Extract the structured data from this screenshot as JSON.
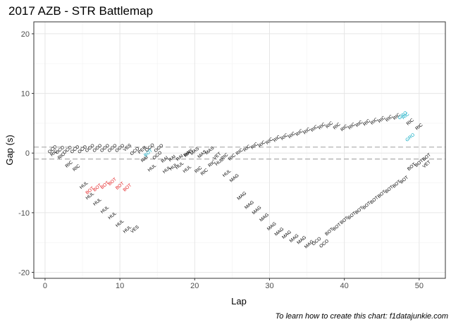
{
  "chart_data": {
    "type": "scatter",
    "title": "2017 AZB - STR Battlemap",
    "xlabel": "Lap",
    "ylabel": "Gap (s)",
    "xlim": [
      -1.5,
      53.5
    ],
    "ylim": [
      -21,
      22
    ],
    "xticks": [
      0,
      10,
      20,
      30,
      40,
      50
    ],
    "yticks": [
      -20,
      -10,
      0,
      10,
      20
    ],
    "reference_lines": [
      1,
      -1
    ],
    "caption": "To learn how to create this chart: f1datajunkie.com",
    "colors": {
      "default": "#000000",
      "ahead_red": "#e41a1c",
      "behind_teal": "#00a7c1",
      "grid_major": "#e6e6e6",
      "grid_minor": "#f2f2f2",
      "border": "#333333",
      "dashed": "#b3b3b3"
    },
    "points": [
      {
        "x": 1,
        "y": 0.6,
        "label": "OCO",
        "color": "default"
      },
      {
        "x": 1.2,
        "y": 0,
        "label": "RIC",
        "color": "default"
      },
      {
        "x": 2,
        "y": 0.5,
        "label": "OCO",
        "color": "default"
      },
      {
        "x": 2.2,
        "y": -0.5,
        "label": "RIC",
        "color": "default"
      },
      {
        "x": 3,
        "y": 0.5,
        "label": "OCO",
        "color": "default"
      },
      {
        "x": 3.2,
        "y": -1.9,
        "label": "RIC",
        "color": "default"
      },
      {
        "x": 4,
        "y": 0.6,
        "label": "OCO",
        "color": "default"
      },
      {
        "x": 4.2,
        "y": -2.5,
        "label": "RIC",
        "color": "default"
      },
      {
        "x": 5,
        "y": 0.6,
        "label": "OCO",
        "color": "default"
      },
      {
        "x": 6,
        "y": 0.8,
        "label": "OCO",
        "color": "default"
      },
      {
        "x": 5.2,
        "y": -5.4,
        "label": "HUL",
        "color": "default"
      },
      {
        "x": 6,
        "y": -6.3,
        "label": "BOT",
        "color": "ahead_red"
      },
      {
        "x": 7,
        "y": 0.8,
        "label": "OCO",
        "color": "default"
      },
      {
        "x": 6,
        "y": -7.2,
        "label": "HUL",
        "color": "default"
      },
      {
        "x": 7,
        "y": -5.8,
        "label": "BOT",
        "color": "ahead_red"
      },
      {
        "x": 8,
        "y": 0.8,
        "label": "OCO",
        "color": "default"
      },
      {
        "x": 7,
        "y": -8.2,
        "label": "HUL",
        "color": "default"
      },
      {
        "x": 8,
        "y": -5.4,
        "label": "BOT",
        "color": "ahead_red"
      },
      {
        "x": 9,
        "y": 0.8,
        "label": "OCO",
        "color": "default"
      },
      {
        "x": 8,
        "y": -9.5,
        "label": "HUL",
        "color": "default"
      },
      {
        "x": 9,
        "y": -4.8,
        "label": "BOT",
        "color": "ahead_red"
      },
      {
        "x": 10,
        "y": 0.8,
        "label": "OCO",
        "color": "default"
      },
      {
        "x": 9,
        "y": -10.5,
        "label": "HUL",
        "color": "default"
      },
      {
        "x": 10,
        "y": -5.5,
        "label": "BOT",
        "color": "ahead_red"
      },
      {
        "x": 11,
        "y": 0.9,
        "label": "VES",
        "color": "default"
      },
      {
        "x": 10,
        "y": -11.8,
        "label": "HUL",
        "color": "default"
      },
      {
        "x": 11,
        "y": -5.8,
        "label": "BOT",
        "color": "ahead_red"
      },
      {
        "x": 12,
        "y": 0.3,
        "label": "OCO",
        "color": "default"
      },
      {
        "x": 11,
        "y": -12.8,
        "label": "HUL",
        "color": "default"
      },
      {
        "x": 12,
        "y": -12.8,
        "label": "VES",
        "color": "default"
      },
      {
        "x": 13,
        "y": 0.5,
        "label": "PER",
        "color": "default"
      },
      {
        "x": 13.3,
        "y": -1,
        "label": "RAI",
        "color": "default"
      },
      {
        "x": 13.8,
        "y": 0,
        "label": "BOT",
        "color": "behind_teal"
      },
      {
        "x": 14,
        "y": 0.9,
        "label": "OCO",
        "color": "default"
      },
      {
        "x": 15,
        "y": -0.4,
        "label": "OCO",
        "color": "default"
      },
      {
        "x": 14.3,
        "y": -2.5,
        "label": "HUL",
        "color": "default"
      },
      {
        "x": 15.2,
        "y": 0.8,
        "label": "OCO",
        "color": "default"
      },
      {
        "x": 16,
        "y": -1.1,
        "label": "RAI",
        "color": "default"
      },
      {
        "x": 16.3,
        "y": -2.8,
        "label": "HUL",
        "color": "default"
      },
      {
        "x": 17,
        "y": -0.9,
        "label": "RAI",
        "color": "default"
      },
      {
        "x": 17.2,
        "y": -2.3,
        "label": "HUL",
        "color": "default"
      },
      {
        "x": 18,
        "y": -0.8,
        "label": "RAI",
        "color": "default"
      },
      {
        "x": 18,
        "y": -2.1,
        "label": "HUL",
        "color": "default"
      },
      {
        "x": 19,
        "y": -0.1,
        "label": "RAI",
        "color": "default"
      },
      {
        "x": 19.2,
        "y": 0,
        "label": "MAS",
        "color": "default"
      },
      {
        "x": 19,
        "y": -2.7,
        "label": "HUL",
        "color": "default"
      },
      {
        "x": 20,
        "y": 0.3,
        "label": "MAS",
        "color": "default"
      },
      {
        "x": 20.5,
        "y": -2.8,
        "label": "RIC",
        "color": "default"
      },
      {
        "x": 21,
        "y": -0.2,
        "label": "MAS",
        "color": "default"
      },
      {
        "x": 21.3,
        "y": -3.2,
        "label": "RIC",
        "color": "default"
      },
      {
        "x": 22,
        "y": 0.4,
        "label": "MAS",
        "color": "default"
      },
      {
        "x": 22.3,
        "y": -1.8,
        "label": "RIC",
        "color": "default"
      },
      {
        "x": 23,
        "y": -0.5,
        "label": "VET",
        "color": "default"
      },
      {
        "x": 23.3,
        "y": -1.5,
        "label": "HUL",
        "color": "default"
      },
      {
        "x": 24,
        "y": -0.6,
        "label": "RIC",
        "color": "default"
      },
      {
        "x": 24.3,
        "y": -3.4,
        "label": "HUL",
        "color": "default"
      },
      {
        "x": 25,
        "y": -0.7,
        "label": "RIC",
        "color": "default"
      },
      {
        "x": 25.3,
        "y": -4.2,
        "label": "MAG",
        "color": "default"
      },
      {
        "x": 26,
        "y": 0.2,
        "label": "RIC",
        "color": "default"
      },
      {
        "x": 26.3,
        "y": -7.2,
        "label": "MAG",
        "color": "default"
      },
      {
        "x": 27,
        "y": 0.8,
        "label": "RIC",
        "color": "default"
      },
      {
        "x": 27.3,
        "y": -8.7,
        "label": "MAG",
        "color": "default"
      },
      {
        "x": 28,
        "y": 1.2,
        "label": "RIC",
        "color": "default"
      },
      {
        "x": 28.3,
        "y": -9.6,
        "label": "MAG",
        "color": "default"
      },
      {
        "x": 29,
        "y": 1.5,
        "label": "RIC",
        "color": "default"
      },
      {
        "x": 29.3,
        "y": -10.8,
        "label": "MAG",
        "color": "default"
      },
      {
        "x": 30,
        "y": 2,
        "label": "RIC",
        "color": "default"
      },
      {
        "x": 30.3,
        "y": -12.3,
        "label": "MAG",
        "color": "default"
      },
      {
        "x": 31,
        "y": 2.4,
        "label": "RIC",
        "color": "default"
      },
      {
        "x": 31.3,
        "y": -13.2,
        "label": "MAG",
        "color": "default"
      },
      {
        "x": 32,
        "y": 2.7,
        "label": "RIC",
        "color": "default"
      },
      {
        "x": 32.3,
        "y": -13.7,
        "label": "MAG",
        "color": "default"
      },
      {
        "x": 33,
        "y": 3,
        "label": "RIC",
        "color": "default"
      },
      {
        "x": 33.3,
        "y": -14.3,
        "label": "MAG",
        "color": "default"
      },
      {
        "x": 34,
        "y": 3.4,
        "label": "RIC",
        "color": "default"
      },
      {
        "x": 34.3,
        "y": -14.6,
        "label": "MAG",
        "color": "default"
      },
      {
        "x": 35,
        "y": 3.7,
        "label": "RIC",
        "color": "default"
      },
      {
        "x": 35.3,
        "y": -15.3,
        "label": "MAG",
        "color": "default"
      },
      {
        "x": 36,
        "y": 4.1,
        "label": "RIC",
        "color": "default"
      },
      {
        "x": 36.3,
        "y": -14.8,
        "label": "OCO",
        "color": "default"
      },
      {
        "x": 37,
        "y": 4.5,
        "label": "RIC",
        "color": "default"
      },
      {
        "x": 37.3,
        "y": -15.2,
        "label": "OCO",
        "color": "default"
      },
      {
        "x": 38,
        "y": 4.7,
        "label": "RIC",
        "color": "default"
      },
      {
        "x": 38,
        "y": -13.2,
        "label": "BOT",
        "color": "default"
      },
      {
        "x": 39,
        "y": 4.5,
        "label": "RIC",
        "color": "default"
      },
      {
        "x": 39,
        "y": -12.4,
        "label": "BOT",
        "color": "default"
      },
      {
        "x": 40,
        "y": 4.2,
        "label": "RIC",
        "color": "default"
      },
      {
        "x": 40,
        "y": -11.3,
        "label": "BOT",
        "color": "default"
      },
      {
        "x": 41,
        "y": 4.5,
        "label": "RIC",
        "color": "default"
      },
      {
        "x": 41,
        "y": -10.5,
        "label": "BOT",
        "color": "default"
      },
      {
        "x": 42,
        "y": 4.9,
        "label": "RIC",
        "color": "default"
      },
      {
        "x": 42,
        "y": -9.6,
        "label": "BOT",
        "color": "default"
      },
      {
        "x": 43,
        "y": 5.1,
        "label": "RIC",
        "color": "default"
      },
      {
        "x": 43,
        "y": -8.8,
        "label": "BOT",
        "color": "default"
      },
      {
        "x": 44,
        "y": 5.3,
        "label": "RIC",
        "color": "default"
      },
      {
        "x": 44,
        "y": -7.9,
        "label": "BOT",
        "color": "default"
      },
      {
        "x": 45,
        "y": 5.6,
        "label": "RIC",
        "color": "default"
      },
      {
        "x": 45,
        "y": -6.9,
        "label": "BOT",
        "color": "default"
      },
      {
        "x": 46,
        "y": 5.8,
        "label": "RIC",
        "color": "default"
      },
      {
        "x": 46,
        "y": -6.1,
        "label": "BOT",
        "color": "default"
      },
      {
        "x": 47,
        "y": 6.1,
        "label": "RIC",
        "color": "default"
      },
      {
        "x": 47,
        "y": -5.2,
        "label": "BOT",
        "color": "default"
      },
      {
        "x": 47.8,
        "y": 6.3,
        "label": "GRO",
        "color": "behind_teal"
      },
      {
        "x": 48.2,
        "y": 6.2,
        "label": "RIC",
        "color": "behind_teal"
      },
      {
        "x": 48,
        "y": -4.5,
        "label": "BOT",
        "color": "default"
      },
      {
        "x": 48.8,
        "y": 5.2,
        "label": "RIC",
        "color": "default"
      },
      {
        "x": 48.8,
        "y": 2.6,
        "label": "GRO",
        "color": "behind_teal"
      },
      {
        "x": 49,
        "y": -2.3,
        "label": "BOT",
        "color": "default"
      },
      {
        "x": 50,
        "y": 4.4,
        "label": "RIC",
        "color": "default"
      },
      {
        "x": 50,
        "y": -1.7,
        "label": "BOT",
        "color": "default"
      },
      {
        "x": 51,
        "y": -0.7,
        "label": "BOT",
        "color": "default"
      },
      {
        "x": 51,
        "y": -1.9,
        "label": "VET",
        "color": "default"
      }
    ]
  }
}
